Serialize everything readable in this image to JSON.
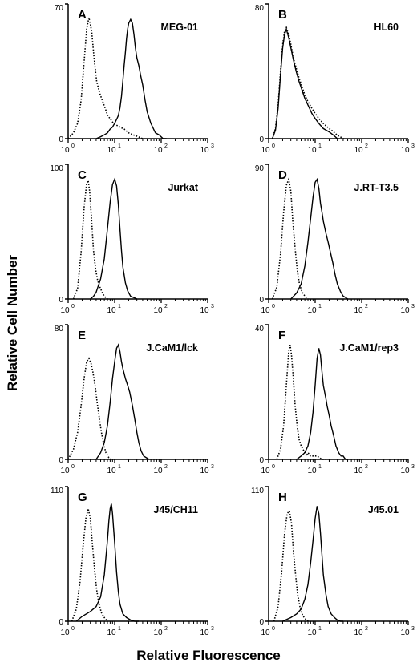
{
  "figure": {
    "ylabel": "Relative Cell Number",
    "xlabel": "Relative Fluorescence"
  },
  "chart_data": [
    {
      "type": "area",
      "letter": "A",
      "title": "MEG-01",
      "ymax": 70,
      "xscale": "log",
      "xlim": [
        1,
        1000
      ],
      "x_ticks": [
        "10",
        "10",
        "10",
        "10"
      ],
      "x_exps": [
        "0",
        "1",
        "2",
        "3"
      ],
      "series": [
        {
          "style": "dotted",
          "x": [
            1.0,
            1.3,
            1.6,
            1.9,
            2.2,
            2.5,
            2.8,
            3.2,
            3.6,
            4.1,
            4.7,
            5.4,
            6.2,
            7.1,
            8.2,
            9.4,
            11,
            13,
            16,
            20,
            25,
            32,
            40
          ],
          "y": [
            0,
            3,
            8,
            20,
            40,
            57,
            63,
            56,
            42,
            30,
            24,
            20,
            16,
            12,
            10,
            8,
            7,
            6,
            5,
            3,
            2,
            1,
            0
          ]
        },
        {
          "style": "solid",
          "x": [
            4,
            5,
            6,
            7,
            8,
            9,
            10,
            11,
            12,
            13,
            14,
            15,
            16,
            17,
            18,
            19,
            20,
            22,
            24,
            26,
            28,
            30,
            33,
            36,
            40,
            45,
            50,
            60,
            75,
            90,
            110,
            130
          ],
          "y": [
            0,
            1,
            2,
            3,
            5,
            6,
            8,
            10,
            12,
            16,
            22,
            30,
            38,
            45,
            52,
            57,
            60,
            62,
            60,
            54,
            47,
            42,
            38,
            33,
            28,
            20,
            14,
            8,
            3,
            2,
            0,
            0
          ]
        }
      ]
    },
    {
      "type": "area",
      "letter": "B",
      "title": "HL60",
      "ymax": 80,
      "xscale": "log",
      "xlim": [
        1,
        1000
      ],
      "x_ticks": [
        "10",
        "10",
        "10",
        "10"
      ],
      "x_exps": [
        "0",
        "1",
        "2",
        "3"
      ],
      "series": [
        {
          "style": "dotted",
          "x": [
            1.2,
            1.4,
            1.6,
            1.8,
            2.0,
            2.2,
            2.4,
            2.7,
            3.0,
            3.4,
            3.9,
            4.5,
            5.2,
            6.0,
            7.0,
            8.5,
            10,
            12,
            15,
            20,
            25,
            30,
            35,
            40,
            45
          ],
          "y": [
            0,
            6,
            20,
            40,
            56,
            64,
            66,
            62,
            56,
            48,
            42,
            36,
            31,
            26,
            22,
            18,
            15,
            12,
            9,
            6,
            4,
            2,
            1,
            0,
            0
          ]
        },
        {
          "style": "solid",
          "x": [
            1.2,
            1.4,
            1.6,
            1.8,
            2.0,
            2.2,
            2.4,
            2.7,
            3.0,
            3.4,
            3.9,
            4.5,
            5.2,
            6.0,
            7.0,
            8.5,
            10,
            12,
            15,
            20,
            25,
            30
          ],
          "y": [
            0,
            5,
            18,
            38,
            54,
            62,
            65,
            60,
            54,
            47,
            40,
            34,
            29,
            24,
            20,
            15,
            12,
            9,
            6,
            4,
            2,
            0
          ]
        }
      ]
    },
    {
      "type": "area",
      "letter": "C",
      "title": "Jurkat",
      "ymax": 100,
      "xscale": "log",
      "xlim": [
        1,
        1000
      ],
      "x_ticks": [
        "10",
        "10",
        "10",
        "10"
      ],
      "x_exps": [
        "0",
        "1",
        "2",
        "3"
      ],
      "series": [
        {
          "style": "dotted",
          "x": [
            1.3,
            1.6,
            1.9,
            2.2,
            2.5,
            2.7,
            2.9,
            3.2,
            3.5,
            3.9,
            4.3,
            4.8,
            5.4,
            6.0,
            7.0
          ],
          "y": [
            0,
            8,
            35,
            68,
            86,
            88,
            80,
            58,
            36,
            22,
            14,
            9,
            5,
            2,
            0
          ]
        },
        {
          "style": "solid",
          "x": [
            3.0,
            3.5,
            4.0,
            5.0,
            6.0,
            7.0,
            8.0,
            9.0,
            10,
            11,
            12,
            13,
            14,
            15,
            17,
            19,
            22,
            26,
            30
          ],
          "y": [
            0,
            2,
            5,
            15,
            30,
            52,
            72,
            85,
            89,
            84,
            70,
            52,
            36,
            24,
            12,
            6,
            2,
            1,
            0
          ]
        }
      ]
    },
    {
      "type": "area",
      "letter": "D",
      "title": "J.RT-T3.5",
      "ymax": 90,
      "xscale": "log",
      "xlim": [
        1,
        1000
      ],
      "x_ticks": [
        "10",
        "10",
        "10",
        "10"
      ],
      "x_exps": [
        "0",
        "1",
        "2",
        "3"
      ],
      "series": [
        {
          "style": "dotted",
          "x": [
            1.2,
            1.5,
            1.8,
            2.1,
            2.4,
            2.7,
            3.0,
            3.3,
            3.7,
            4.1,
            4.6,
            5.2,
            6.0,
            7.0
          ],
          "y": [
            0,
            8,
            30,
            58,
            76,
            80,
            72,
            52,
            34,
            20,
            10,
            5,
            2,
            0
          ]
        },
        {
          "style": "solid",
          "x": [
            3,
            4,
            5,
            6,
            7,
            8,
            9,
            10,
            11,
            12,
            13,
            14,
            15,
            17,
            19,
            21,
            24,
            27,
            30,
            35,
            40,
            45,
            50
          ],
          "y": [
            0,
            4,
            10,
            22,
            38,
            54,
            68,
            78,
            80,
            74,
            64,
            58,
            52,
            44,
            38,
            32,
            24,
            16,
            10,
            5,
            2,
            1,
            0
          ]
        }
      ]
    },
    {
      "type": "area",
      "letter": "E",
      "title": "J.CaM1/lck",
      "ymax": 80,
      "xscale": "log",
      "xlim": [
        1,
        1000
      ],
      "x_ticks": [
        "10",
        "10",
        "10",
        "10"
      ],
      "x_exps": [
        "0",
        "1",
        "2",
        "3"
      ],
      "series": [
        {
          "style": "dotted",
          "x": [
            1.0,
            1.3,
            1.6,
            1.9,
            2.2,
            2.5,
            2.8,
            3.1,
            3.4,
            3.8,
            4.2,
            4.7,
            5.2,
            5.8,
            6.5,
            7.5,
            8.5
          ],
          "y": [
            0,
            6,
            16,
            32,
            48,
            58,
            60,
            57,
            52,
            44,
            34,
            24,
            16,
            9,
            4,
            1,
            0
          ]
        },
        {
          "style": "solid",
          "x": [
            4,
            5,
            6,
            7,
            8,
            9,
            10,
            11,
            12,
            13,
            14,
            15,
            17,
            19,
            21,
            24,
            27,
            30,
            33,
            37,
            42,
            48,
            55
          ],
          "y": [
            0,
            4,
            10,
            20,
            34,
            48,
            58,
            66,
            68,
            64,
            58,
            54,
            48,
            44,
            40,
            32,
            24,
            16,
            10,
            5,
            2,
            1,
            0
          ]
        }
      ]
    },
    {
      "type": "area",
      "letter": "F",
      "title": "J.CaM1/rep3",
      "ymax": 40,
      "xscale": "log",
      "xlim": [
        1,
        1000
      ],
      "x_ticks": [
        "10",
        "10",
        "10",
        "10"
      ],
      "x_exps": [
        "0",
        "1",
        "2",
        "3"
      ],
      "series": [
        {
          "style": "dotted",
          "x": [
            1.5,
            1.8,
            2.1,
            2.4,
            2.7,
            2.9,
            3.1,
            3.4,
            3.7,
            4.1,
            4.5,
            5.0,
            5.5,
            6.0,
            6.5,
            7.0,
            8.0,
            9.0,
            11,
            14,
            17
          ],
          "y": [
            0,
            3,
            10,
            22,
            32,
            34,
            31,
            24,
            16,
            10,
            6,
            4,
            3,
            2,
            1,
            2,
            1,
            1,
            1,
            0,
            0
          ]
        },
        {
          "style": "solid",
          "x": [
            4,
            5,
            6,
            7,
            8,
            9,
            10,
            11,
            12,
            13,
            14,
            15,
            16,
            17,
            18,
            20,
            22,
            25,
            28,
            32,
            36,
            40,
            45,
            50
          ],
          "y": [
            0,
            1,
            2,
            4,
            8,
            14,
            22,
            30,
            33,
            31,
            26,
            22,
            20,
            18,
            16,
            13,
            10,
            7,
            4,
            2,
            1,
            1,
            0,
            0
          ]
        }
      ]
    },
    {
      "type": "area",
      "letter": "G",
      "title": "J45/CH11",
      "ymax": 110,
      "xscale": "log",
      "xlim": [
        1,
        1000
      ],
      "x_ticks": [
        "10",
        "10",
        "10",
        "10"
      ],
      "x_exps": [
        "0",
        "1",
        "2",
        "3"
      ],
      "series": [
        {
          "style": "dotted",
          "x": [
            1.2,
            1.5,
            1.8,
            2.1,
            2.4,
            2.7,
            3.0,
            3.3,
            3.7,
            4.1,
            4.6,
            5.2,
            6.0,
            7.0
          ],
          "y": [
            0,
            10,
            32,
            62,
            84,
            92,
            84,
            64,
            42,
            26,
            14,
            7,
            3,
            0
          ]
        },
        {
          "style": "solid",
          "x": [
            1.5,
            2,
            3,
            4,
            5,
            6,
            7,
            7.5,
            8,
            8.5,
            9,
            10,
            11,
            12,
            13,
            15,
            18,
            22,
            27,
            33
          ],
          "y": [
            0,
            4,
            8,
            12,
            20,
            38,
            66,
            82,
            92,
            96,
            88,
            64,
            40,
            24,
            14,
            6,
            3,
            1,
            0,
            0
          ]
        }
      ]
    },
    {
      "type": "area",
      "letter": "H",
      "title": "J45.01",
      "ymax": 110,
      "xscale": "log",
      "xlim": [
        1,
        1000
      ],
      "x_ticks": [
        "10",
        "10",
        "10",
        "10"
      ],
      "x_exps": [
        "0",
        "1",
        "2",
        "3"
      ],
      "series": [
        {
          "style": "dotted",
          "x": [
            1.3,
            1.6,
            1.9,
            2.2,
            2.5,
            2.8,
            3.1,
            3.4,
            3.8,
            4.2,
            4.7,
            5.2,
            5.8,
            6.5,
            7.5
          ],
          "y": [
            0,
            12,
            40,
            72,
            88,
            90,
            80,
            58,
            38,
            22,
            12,
            6,
            3,
            1,
            0
          ]
        },
        {
          "style": "solid",
          "x": [
            2,
            3,
            4,
            5,
            6,
            7,
            8,
            9,
            10,
            11,
            12,
            13,
            14,
            15,
            17,
            19,
            22,
            26,
            30,
            35,
            40
          ],
          "y": [
            0,
            3,
            6,
            10,
            18,
            30,
            48,
            66,
            84,
            94,
            88,
            72,
            54,
            38,
            22,
            12,
            6,
            3,
            1,
            0,
            0
          ]
        }
      ]
    }
  ]
}
